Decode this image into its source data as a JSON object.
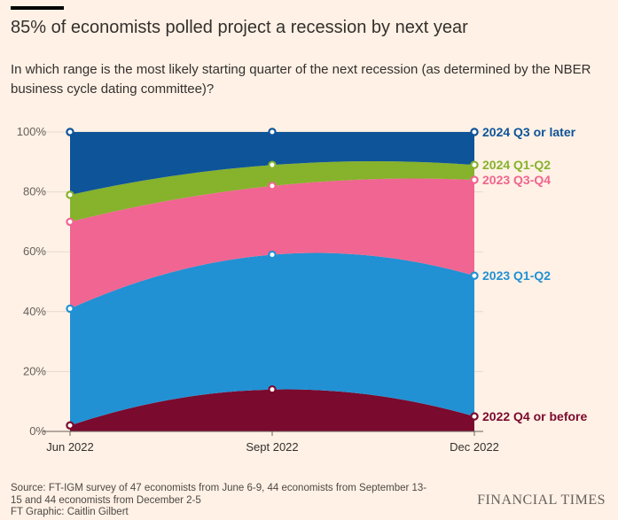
{
  "header": {
    "title": "85% of economists polled project a recession by next year",
    "subtitle": "In which range is the most likely starting quarter of the next recession (as determined by the NBER business cycle dating committee)?"
  },
  "chart_data": {
    "type": "area",
    "stacked": true,
    "x": [
      "Jun 2022",
      "Sept 2022",
      "Dec 2022"
    ],
    "ylim": [
      0,
      100
    ],
    "yticks": [
      0,
      20,
      40,
      60,
      80,
      100
    ],
    "ytick_labels": [
      "0%",
      "20%",
      "40%",
      "60%",
      "80%",
      "100%"
    ],
    "legend_placement": "right (direct labels)",
    "series": [
      {
        "name": "2022 Q4 or before",
        "color": "#7a0a2e",
        "values": [
          2,
          14,
          5
        ]
      },
      {
        "name": "2023 Q1-Q2",
        "color": "#2191d3",
        "values": [
          39,
          45,
          47
        ]
      },
      {
        "name": "2023 Q3-Q4",
        "color": "#f06591",
        "values": [
          29,
          23,
          32
        ]
      },
      {
        "name": "2024 Q1-Q2",
        "color": "#86b22c",
        "values": [
          9,
          7,
          5
        ]
      },
      {
        "name": "2024 Q3 or later",
        "color": "#0d5499",
        "values": [
          21,
          11,
          11
        ]
      }
    ]
  },
  "footer": {
    "source_line1": "Source: FT-IGM survey of 47 economists from June 6-9, 44 economists from September 13-",
    "source_line2": "15 and 44 economists from December 2-5",
    "source_line3": "FT Graphic: Caitlin Gilbert",
    "brand": "FINANCIAL TIMES"
  }
}
